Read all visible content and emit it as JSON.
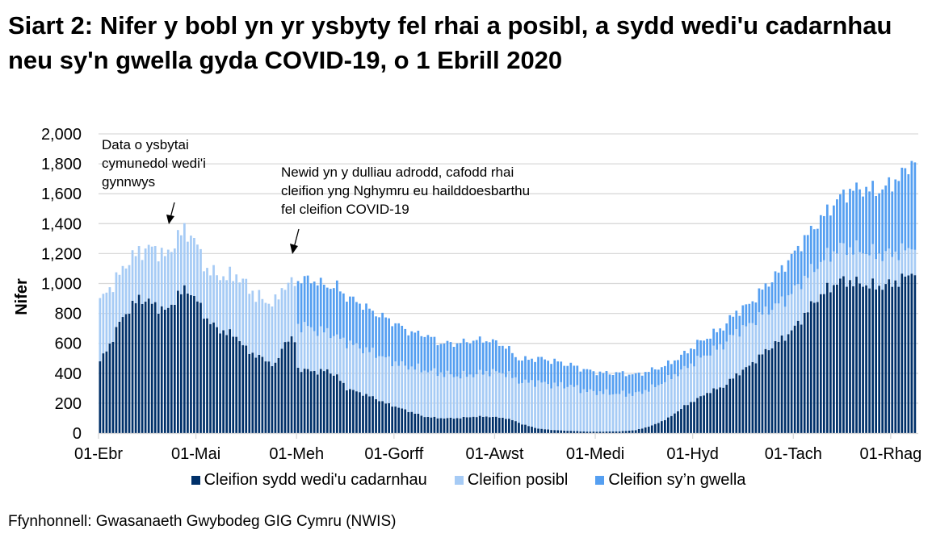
{
  "title": "Siart 2: Nifer y bobl yn yr ysbyty fel rhai a posibl, a sydd wedi'u cadarnhau neu sy'n gwella gyda COVID-19, o 1 Ebrill 2020",
  "annotations": [
    {
      "text_lines": [
        "Data o ysbytai",
        "cymunedol wedi'i",
        "gynnwys"
      ]
    },
    {
      "text_lines": [
        "Newid yn y dulliau adrodd, cafodd rhai",
        "cleifion yng Nghymru eu hailddoesbarthu",
        "fel cleifion COVID-19"
      ]
    }
  ],
  "annotation_text": {
    "a1": "Data o ysbytai cymunedol wedi'i gynnwys",
    "a2": "Newid yn y dulliau adrodd, cafodd rhai cleifion yng Nghymru eu hailddoesbarthu fel cleifion COVID-19"
  },
  "legend": [
    {
      "label": "Cleifion sydd wedi'u cadarnhau",
      "color": "#003069"
    },
    {
      "label": "Cleifion posibl",
      "color": "#a6cbf5"
    },
    {
      "label": "Cleifion sy’n gwella",
      "color": "#559ff1"
    }
  ],
  "source": "Ffynhonnell: Gwasanaeth Gwybodeg GIG Cymru (NWIS)",
  "colors": {
    "confirmed": "#003069",
    "suspected": "#a6cbf5",
    "recovering": "#559ff1",
    "grid": "#d9d9d9",
    "axis": "#d9d9d9"
  },
  "chart_data": {
    "type": "bar",
    "stacked": true,
    "title": "Siart 2: Nifer y bobl yn yr ysbyty fel rhai a posibl, a sydd wedi'u cadarnhau neu sy'n gwella gyda COVID-19, o 1 Ebrill 2020",
    "xlabel": "",
    "ylabel": "Nifer",
    "ylim": [
      0,
      2000
    ],
    "yticks": [
      0,
      200,
      400,
      600,
      800,
      1000,
      1200,
      1400,
      1600,
      1800,
      2000
    ],
    "ytick_labels": [
      "0",
      "200",
      "400",
      "600",
      "800",
      "1,000",
      "1,200",
      "1,400",
      "1,600",
      "1,800",
      "2,000"
    ],
    "xtick_labels": [
      "01-Ebr",
      "01-Mai",
      "01-Meh",
      "01-Gorff",
      "01-Awst",
      "01-Medi",
      "01-Hyd",
      "01-Tach",
      "01-Rhag"
    ],
    "xtick_day_index": [
      0,
      30,
      61,
      91,
      122,
      153,
      183,
      214,
      244
    ],
    "grid": true,
    "legend_position": "bottom",
    "x_start": "2020-04-01",
    "x_step": "1 day",
    "keyframes_note": "values per day, approximate readings",
    "keyframes": {
      "day": [
        0,
        3,
        6,
        9,
        12,
        15,
        18,
        21,
        24,
        27,
        29,
        30,
        33,
        36,
        39,
        42,
        45,
        48,
        51,
        54,
        57,
        60,
        61,
        64,
        67,
        70,
        73,
        76,
        80,
        84,
        88,
        92,
        96,
        100,
        105,
        110,
        115,
        120,
        125,
        128,
        130,
        135,
        140,
        145,
        150,
        155,
        160,
        165,
        170,
        175,
        180,
        184,
        188,
        192,
        196,
        200,
        204,
        208,
        212,
        216,
        220,
        224,
        228,
        232,
        236,
        240,
        244,
        248,
        251
      ],
      "confirmed": [
        480,
        590,
        740,
        830,
        900,
        880,
        840,
        820,
        930,
        960,
        910,
        880,
        760,
        700,
        670,
        650,
        560,
        520,
        490,
        450,
        620,
        620,
        430,
        420,
        410,
        420,
        380,
        300,
        270,
        240,
        200,
        170,
        140,
        110,
        100,
        100,
        110,
        110,
        100,
        80,
        60,
        30,
        20,
        15,
        10,
        10,
        12,
        20,
        50,
        100,
        180,
        230,
        280,
        310,
        390,
        450,
        530,
        600,
        660,
        760,
        880,
        960,
        1020,
        1010,
        990,
        980,
        1000,
        1040,
        1090
      ],
      "suspected": [
        400,
        380,
        320,
        330,
        310,
        360,
        380,
        360,
        400,
        380,
        400,
        360,
        330,
        360,
        370,
        410,
        430,
        400,
        390,
        420,
        380,
        380,
        290,
        290,
        270,
        260,
        260,
        310,
        300,
        300,
        300,
        290,
        300,
        310,
        300,
        280,
        280,
        300,
        300,
        280,
        280,
        310,
        300,
        300,
        270,
        260,
        250,
        240,
        250,
        260,
        250,
        260,
        260,
        280,
        290,
        270,
        270,
        250,
        250,
        250,
        220,
        220,
        220,
        220,
        220,
        210,
        200,
        180,
        170
      ],
      "recovering": [
        0,
        0,
        0,
        0,
        0,
        0,
        0,
        0,
        0,
        0,
        0,
        0,
        0,
        0,
        0,
        0,
        0,
        0,
        0,
        0,
        0,
        0,
        300,
        320,
        330,
        300,
        340,
        300,
        300,
        270,
        270,
        260,
        230,
        240,
        200,
        220,
        230,
        210,
        180,
        150,
        150,
        160,
        160,
        140,
        140,
        130,
        140,
        130,
        120,
        100,
        100,
        110,
        110,
        120,
        130,
        140,
        160,
        200,
        240,
        260,
        280,
        300,
        340,
        400,
        420,
        430,
        470,
        530,
        580
      ]
    }
  }
}
